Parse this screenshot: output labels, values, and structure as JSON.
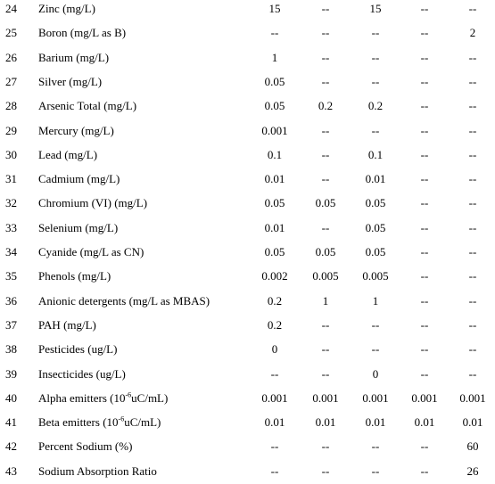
{
  "table": {
    "rows": [
      [
        "24",
        "Zinc (mg/L)",
        "15",
        "--",
        "15",
        "--",
        "--"
      ],
      [
        "25",
        "Boron (mg/L as B)",
        "--",
        "--",
        "--",
        "--",
        "2"
      ],
      [
        "26",
        "Barium (mg/L)",
        "1",
        "--",
        "--",
        "--",
        "--"
      ],
      [
        "27",
        "Silver (mg/L)",
        "0.05",
        "--",
        "--",
        "--",
        "--"
      ],
      [
        "28",
        "Arsenic Total (mg/L)",
        "0.05",
        "0.2",
        "0.2",
        "--",
        "--"
      ],
      [
        "29",
        "Mercury (mg/L)",
        "0.001",
        "--",
        "--",
        "--",
        "--"
      ],
      [
        "30",
        "Lead (mg/L)",
        "0.1",
        "--",
        "0.1",
        "--",
        "--"
      ],
      [
        "31",
        "Cadmium (mg/L)",
        "0.01",
        "--",
        "0.01",
        "--",
        "--"
      ],
      [
        "32",
        "Chromium (VI) (mg/L)",
        "0.05",
        "0.05",
        "0.05",
        "--",
        "--"
      ],
      [
        "33",
        "Selenium (mg/L)",
        "0.01",
        "--",
        "0.05",
        "--",
        "--"
      ],
      [
        "34",
        "Cyanide (mg/L as CN)",
        "0.05",
        "0.05",
        "0.05",
        "--",
        "--"
      ],
      [
        "35",
        "Phenols (mg/L)",
        "0.002",
        "0.005",
        "0.005",
        "--",
        "--"
      ],
      [
        "36",
        "Anionic detergents (mg/L as MBAS)",
        "0.2",
        "1",
        "1",
        "--",
        "--"
      ],
      [
        "37",
        "PAH (mg/L)",
        "0.2",
        "--",
        "--",
        "--",
        "--"
      ],
      [
        "38",
        "Pesticides (ug/L)",
        "0",
        "--",
        "--",
        "--",
        "--"
      ],
      [
        "39",
        "Insecticides (ug/L)",
        "--",
        "--",
        "0",
        "--",
        "--"
      ],
      [
        "40",
        {
          "text": "Alpha emitters (10",
          "sup": "-6",
          "tail": "uC/mL)"
        },
        "0.001",
        "0.001",
        "0.001",
        "0.001",
        "0.001"
      ],
      [
        "41",
        {
          "text": "Beta emitters (10",
          "sup": "-6",
          "tail": "uC/mL)"
        },
        "0.01",
        "0.01",
        "0.01",
        "0.01",
        "0.01"
      ],
      [
        "42",
        "Percent Sodium (%)",
        "--",
        "--",
        "--",
        "--",
        "60"
      ],
      [
        "43",
        "Sodium Absorption Ratio",
        "--",
        "--",
        "--",
        "--",
        "26"
      ]
    ]
  }
}
